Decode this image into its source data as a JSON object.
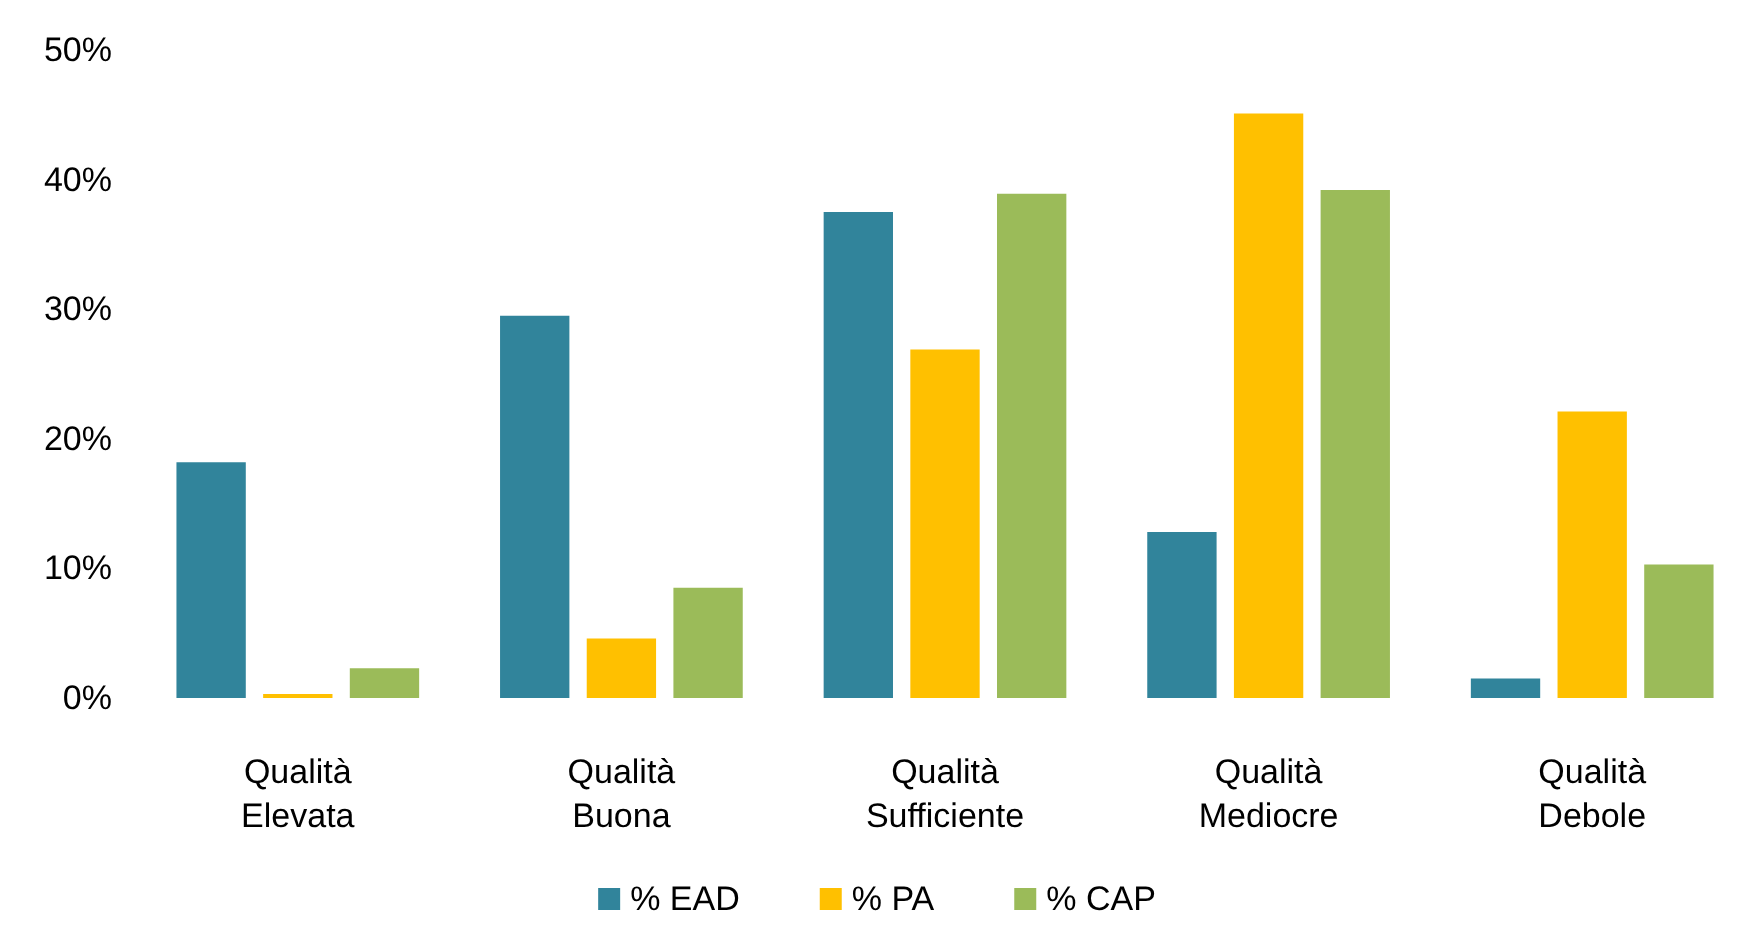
{
  "chart_data": {
    "type": "bar",
    "categories": [
      "Qualità\nElevata",
      "Qualità\nBuona",
      "Qualità\nSufficiente",
      "Qualità\nMediocre",
      "Qualità\nDebole"
    ],
    "series": [
      {
        "name": "% EAD",
        "color": "#31849b",
        "values": [
          18.2,
          29.5,
          37.5,
          12.8,
          1.5
        ]
      },
      {
        "name": "% PA",
        "color": "#ffc000",
        "values": [
          0.3,
          4.6,
          26.9,
          45.1,
          22.1
        ]
      },
      {
        "name": "% CAP",
        "color": "#9bbb59",
        "values": [
          2.3,
          8.5,
          38.9,
          39.2,
          10.3
        ]
      }
    ],
    "ylim": [
      0,
      50
    ],
    "yticks": [
      {
        "value": 0,
        "label": "0%"
      },
      {
        "value": 10,
        "label": "10%"
      },
      {
        "value": 20,
        "label": "20%"
      },
      {
        "value": 30,
        "label": "30%"
      },
      {
        "value": 40,
        "label": "40%"
      },
      {
        "value": 50,
        "label": "50%"
      }
    ],
    "grid": false,
    "legend": "bottom"
  }
}
